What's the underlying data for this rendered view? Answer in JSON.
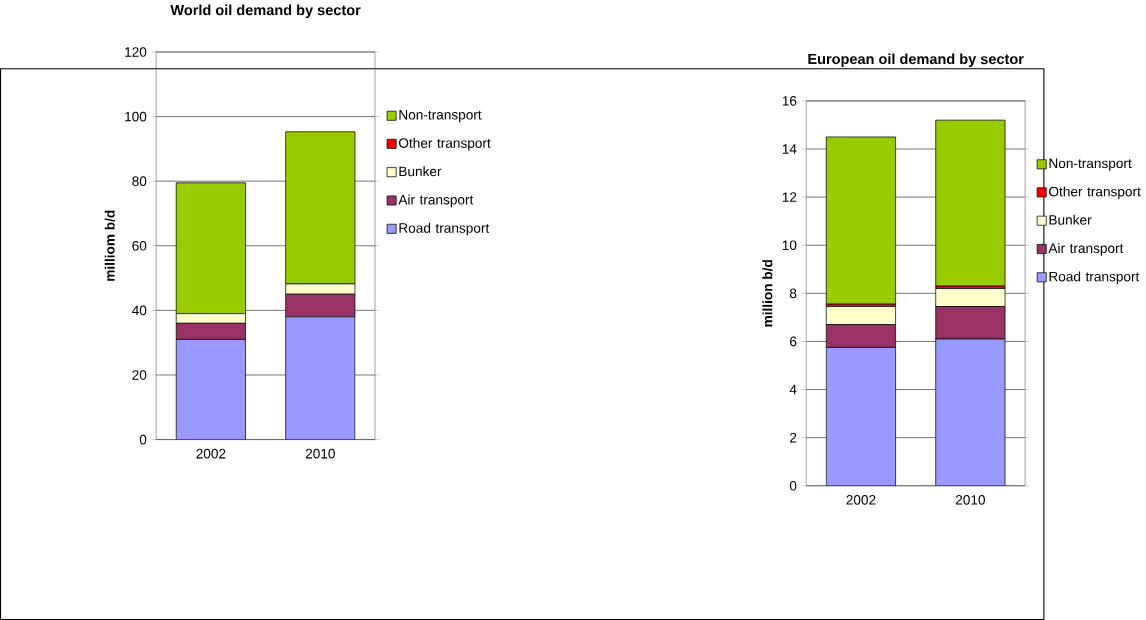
{
  "chart_data": [
    {
      "type": "bar",
      "title": "World oil demand by sector",
      "ylabel": "milliom b/d",
      "categories": [
        "2002",
        "2010"
      ],
      "stacked": true,
      "grid": "y",
      "legend": "right",
      "ylim": [
        0,
        120
      ],
      "yticks": [
        0,
        20,
        40,
        60,
        80,
        100,
        120
      ],
      "series": [
        {
          "name": "Road transport",
          "color": "#9999ff",
          "values": [
            31,
            38
          ]
        },
        {
          "name": "Air transport",
          "color": "#993366",
          "values": [
            5,
            7
          ]
        },
        {
          "name": "Bunker",
          "color": "#ffffcc",
          "values": [
            3,
            3.2
          ]
        },
        {
          "name": "Other transport",
          "color": "#ff0000",
          "values": [
            0,
            0
          ]
        },
        {
          "name": "Non-transport",
          "color": "#99cc00",
          "values": [
            40.5,
            47.1
          ]
        }
      ]
    },
    {
      "type": "bar",
      "title": "European oil demand by sector",
      "ylabel": "million b/d",
      "categories": [
        "2002",
        "2010"
      ],
      "stacked": true,
      "grid": "y",
      "legend": "right",
      "ylim": [
        0,
        16
      ],
      "yticks": [
        0,
        2,
        4,
        6,
        8,
        10,
        12,
        14,
        16
      ],
      "series": [
        {
          "name": "Road transport",
          "color": "#9999ff",
          "values": [
            5.75,
            6.1
          ]
        },
        {
          "name": "Air transport",
          "color": "#993366",
          "values": [
            0.95,
            1.35
          ]
        },
        {
          "name": "Bunker",
          "color": "#ffffcc",
          "values": [
            0.75,
            0.75
          ]
        },
        {
          "name": "Other transport",
          "color": "#ff0000",
          "values": [
            0.1,
            0.1
          ]
        },
        {
          "name": "Non-transport",
          "color": "#99cc00",
          "values": [
            6.95,
            6.9
          ]
        }
      ]
    }
  ]
}
